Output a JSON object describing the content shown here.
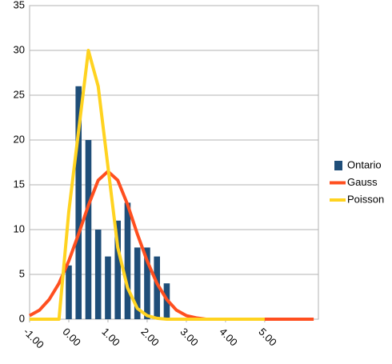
{
  "chart_data": {
    "type": "bar-line",
    "x": [
      -1,
      -0.75,
      -0.5,
      -0.25,
      0,
      0.25,
      0.5,
      0.75,
      1,
      1.25,
      1.5,
      1.75,
      2,
      2.25,
      2.5,
      2.75,
      3,
      3.25,
      3.5,
      3.75,
      4,
      4.25,
      4.5,
      4.75,
      5,
      5.25,
      5.5,
      5.75,
      6,
      6.25
    ],
    "series": [
      {
        "name": "Ontario",
        "kind": "bar",
        "color": "#1f4e79",
        "values": [
          null,
          null,
          null,
          null,
          6,
          26,
          20,
          10,
          7,
          11,
          13,
          8,
          8,
          7,
          4,
          null,
          null,
          null,
          null,
          null,
          null,
          null,
          null,
          null,
          null,
          null,
          null,
          null,
          null,
          null
        ]
      },
      {
        "name": "Gauss",
        "kind": "line",
        "color": "#ff4f1f",
        "values": [
          0.4,
          1,
          2.2,
          4,
          6.5,
          9.5,
          12.7,
          15.5,
          16.5,
          15.5,
          12.8,
          9.5,
          6.5,
          4,
          2.2,
          1,
          0.4,
          0.15,
          0,
          0,
          0,
          0,
          0,
          0,
          0,
          0,
          0,
          0,
          0,
          0
        ]
      },
      {
        "name": "Poisson",
        "kind": "line",
        "color": "#ffd320",
        "values": [
          0,
          0,
          0,
          0,
          12,
          21,
          30,
          26,
          17,
          8,
          3.5,
          1.2,
          0.4,
          0.1,
          0,
          0,
          0,
          0,
          0,
          0,
          0,
          0,
          0,
          0,
          0,
          null,
          null,
          null,
          null,
          null
        ]
      }
    ],
    "xlim": [
      -1,
      6.37
    ],
    "xticks": [
      {
        "value": -1,
        "label": "-1.00"
      },
      {
        "value": 0,
        "label": "0.00"
      },
      {
        "value": 1,
        "label": "1.00"
      },
      {
        "value": 2,
        "label": "2.00"
      },
      {
        "value": 3,
        "label": "3.00"
      },
      {
        "value": 4,
        "label": "4.00"
      },
      {
        "value": 5,
        "label": "5.00"
      }
    ],
    "ylim": [
      0,
      35
    ],
    "yticks": [
      0,
      5,
      10,
      15,
      20,
      25,
      30,
      35
    ],
    "grid": true,
    "legend": "right"
  }
}
